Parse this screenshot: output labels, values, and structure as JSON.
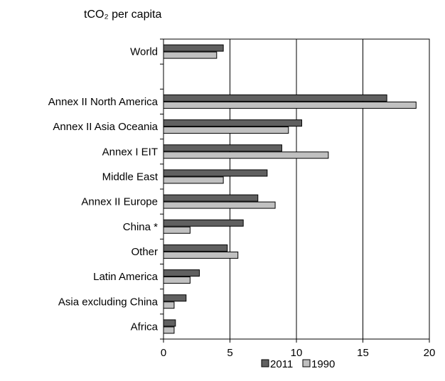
{
  "chart_data": {
    "type": "bar",
    "orientation": "horizontal",
    "unit_label": "tCO₂ per capita",
    "categories": [
      "World",
      "",
      "Annex II North America",
      "Annex II Asia Oceania",
      "Annex I EIT",
      "Middle East",
      "Annex II Europe",
      "China *",
      "Other",
      "Latin America",
      "Asia excluding China",
      "Africa"
    ],
    "series": [
      {
        "name": "2011",
        "color": "#606060",
        "values": [
          4.5,
          null,
          16.8,
          10.4,
          8.9,
          7.8,
          7.1,
          6.0,
          4.8,
          2.7,
          1.7,
          0.9
        ]
      },
      {
        "name": "1990",
        "color": "#c0c0c0",
        "values": [
          4.0,
          null,
          19.0,
          9.4,
          12.4,
          4.5,
          8.4,
          2.0,
          5.6,
          2.0,
          0.8,
          0.8
        ]
      }
    ],
    "xlim": [
      0,
      20
    ],
    "x_ticks": [
      "0",
      "5",
      "10",
      "15",
      "20"
    ],
    "x_tick_values": [
      0,
      5,
      10,
      15,
      20
    ],
    "grid": true,
    "legend": "bottom"
  }
}
